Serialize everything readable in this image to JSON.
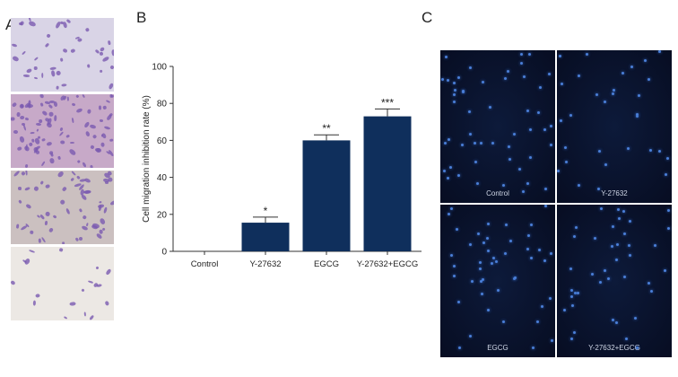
{
  "panels": {
    "a": "A",
    "b": "B",
    "c": "C"
  },
  "panel_c_labels": [
    "Control",
    "Y-27632",
    "EGCG",
    "Y-27632+EGCG"
  ],
  "colors": {
    "bar": "#0f2f5c",
    "cells": "#7a5ab0"
  },
  "chart_data": {
    "type": "bar",
    "categories": [
      "Control",
      "Y-27632",
      "EGCG",
      "Y-27632+EGCG"
    ],
    "values": [
      0,
      15.5,
      60,
      73
    ],
    "errors": [
      0,
      3,
      3,
      4
    ],
    "significance": [
      "",
      "*",
      "**",
      "***"
    ],
    "ylabel": "Cell migration inhibition rate (%)",
    "xlabel": "",
    "ylim": [
      0,
      100
    ],
    "yticks": [
      "0",
      "20",
      "40",
      "60",
      "80",
      "100"
    ]
  }
}
